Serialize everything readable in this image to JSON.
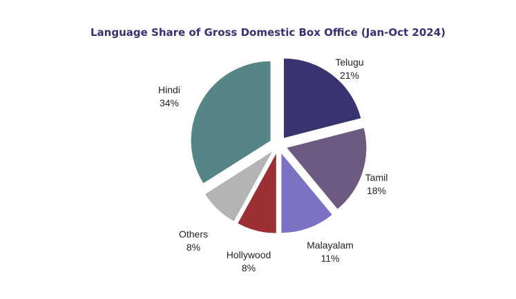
{
  "chart_data": {
    "type": "pie",
    "title": "Language Share of Gross Domestic Box Office (Jan-Oct 2024)",
    "slices": [
      {
        "label": "Telugu",
        "value": 21,
        "value_text": "21%",
        "color": "#383470"
      },
      {
        "label": "Tamil",
        "value": 18,
        "value_text": "18%",
        "color": "#6e5a80"
      },
      {
        "label": "Malayalam",
        "value": 11,
        "value_text": "11%",
        "color": "#7b72c4"
      },
      {
        "label": "Hollywood",
        "value": 8,
        "value_text": "8%",
        "color": "#9b2f34"
      },
      {
        "label": "Others",
        "value": 8,
        "value_text": "8%",
        "color": "#b3b5b4"
      },
      {
        "label": "Hindi",
        "value": 34,
        "value_text": "34%",
        "color": "#568586"
      }
    ],
    "start_angle_deg": 0,
    "direction": "clockwise",
    "exploded": true,
    "title_color": "#3a2f6f"
  }
}
